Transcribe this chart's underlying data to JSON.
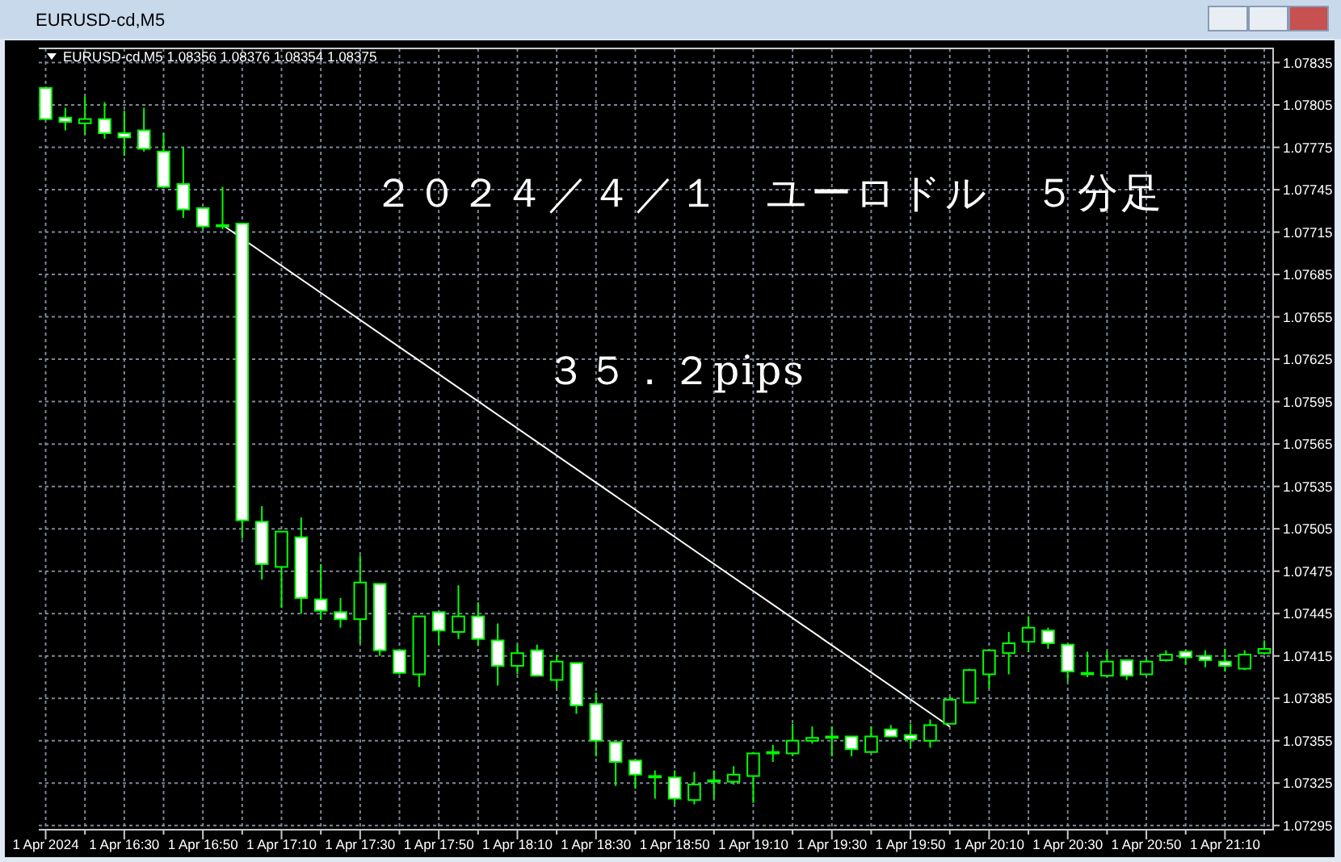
{
  "chart_data": {
    "type": "candlestick",
    "title": "２０２４／４／１　ユーロドル　５分足",
    "annotations": [
      "EURUSD-cd,M5",
      "EURUSD-cd,M5  1.08356 1.08376 1.08354 1.08375",
      "３５．２pips"
    ],
    "categories": [
      "1 Apr 2024",
      null,
      null,
      null,
      "1 Apr 16:30",
      null,
      null,
      null,
      "1 Apr 16:50",
      null,
      null,
      null,
      "1 Apr 17:10",
      null,
      null,
      null,
      "1 Apr 17:30",
      null,
      null,
      null,
      "1 Apr 17:50",
      null,
      null,
      null,
      "1 Apr 18:10",
      null,
      null,
      null,
      "1 Apr 18:30",
      null,
      null,
      null,
      "1 Apr 18:50",
      null,
      null,
      null,
      "1 Apr 19:10",
      null,
      null,
      null,
      "1 Apr 19:30",
      null,
      null,
      null,
      "1 Apr 19:50",
      null,
      null,
      null,
      "1 Apr 20:10",
      null,
      null,
      null,
      "1 Apr 20:30",
      null,
      null,
      null,
      "1 Apr 20:50",
      null,
      null,
      null,
      "1 Apr 21:10",
      null,
      null
    ],
    "ohlc": [
      [
        1.07817,
        1.07818,
        1.07794,
        1.07795
      ],
      [
        1.07796,
        1.07803,
        1.07787,
        1.07793
      ],
      [
        1.07792,
        1.07811,
        1.07784,
        1.07795
      ],
      [
        1.07795,
        1.07807,
        1.07781,
        1.07785
      ],
      [
        1.07785,
        1.07801,
        1.07769,
        1.07782
      ],
      [
        1.07787,
        1.07803,
        1.07772,
        1.07774
      ],
      [
        1.07772,
        1.07785,
        1.07746,
        1.07747
      ],
      [
        1.07749,
        1.07775,
        1.07725,
        1.07731
      ],
      [
        1.07732,
        1.07732,
        1.07717,
        1.07719
      ],
      [
        1.0772,
        1.07747,
        1.07717,
        1.07719
      ],
      [
        1.07721,
        1.07721,
        1.07498,
        1.07511
      ],
      [
        1.0751,
        1.07521,
        1.07469,
        1.0748
      ],
      [
        1.07478,
        1.07503,
        1.07449,
        1.07503
      ],
      [
        1.07499,
        1.07513,
        1.07445,
        1.07456
      ],
      [
        1.07455,
        1.0748,
        1.07441,
        1.07447
      ],
      [
        1.07446,
        1.07456,
        1.07435,
        1.07441
      ],
      [
        1.07441,
        1.07486,
        1.07424,
        1.07467
      ],
      [
        1.07466,
        1.07466,
        1.07415,
        1.07419
      ],
      [
        1.07419,
        1.07419,
        1.07402,
        1.07403
      ],
      [
        1.07402,
        1.07443,
        1.07393,
        1.07443
      ],
      [
        1.07446,
        1.07446,
        1.07423,
        1.07433
      ],
      [
        1.07432,
        1.07465,
        1.07427,
        1.07443
      ],
      [
        1.07443,
        1.07453,
        1.07422,
        1.07427
      ],
      [
        1.07426,
        1.07438,
        1.07394,
        1.07408
      ],
      [
        1.07408,
        1.07423,
        1.07402,
        1.07417
      ],
      [
        1.07419,
        1.07423,
        1.07401,
        1.07401
      ],
      [
        1.07398,
        1.07416,
        1.07392,
        1.07411
      ],
      [
        1.0741,
        1.0741,
        1.07374,
        1.0738
      ],
      [
        1.07381,
        1.07389,
        1.07344,
        1.07355
      ],
      [
        1.07354,
        1.07354,
        1.07323,
        1.0734
      ],
      [
        1.07341,
        1.07341,
        1.07321,
        1.07331
      ],
      [
        1.0733,
        1.07334,
        1.07314,
        1.07329
      ],
      [
        1.07329,
        1.07334,
        1.0731,
        1.07314
      ],
      [
        1.07313,
        1.07333,
        1.0731,
        1.07324
      ],
      [
        1.07326,
        1.07334,
        1.07314,
        1.07327
      ],
      [
        1.07326,
        1.07337,
        1.07324,
        1.07331
      ],
      [
        1.0733,
        1.07347,
        1.07311,
        1.07346
      ],
      [
        1.07346,
        1.07352,
        1.0734,
        1.07347
      ],
      [
        1.07346,
        1.07367,
        1.07344,
        1.07355
      ],
      [
        1.07355,
        1.07365,
        1.07353,
        1.07357
      ],
      [
        1.07357,
        1.07365,
        1.07344,
        1.07358
      ],
      [
        1.07358,
        1.07358,
        1.07344,
        1.07349
      ],
      [
        1.07347,
        1.07365,
        1.07347,
        1.07358
      ],
      [
        1.07363,
        1.07366,
        1.07358,
        1.07358
      ],
      [
        1.07359,
        1.07367,
        1.0735,
        1.07356
      ],
      [
        1.07355,
        1.0737,
        1.0735,
        1.07366
      ],
      [
        1.07367,
        1.07386,
        1.07367,
        1.07384
      ],
      [
        1.07382,
        1.07406,
        1.07382,
        1.07405
      ],
      [
        1.07402,
        1.07419,
        1.07392,
        1.07419
      ],
      [
        1.07417,
        1.07432,
        1.07402,
        1.07424
      ],
      [
        1.07425,
        1.07443,
        1.07418,
        1.07435
      ],
      [
        1.07433,
        1.07435,
        1.0742,
        1.07424
      ],
      [
        1.07423,
        1.07423,
        1.07397,
        1.07404
      ],
      [
        1.07403,
        1.07418,
        1.074,
        1.07402
      ],
      [
        1.07401,
        1.07418,
        1.074,
        1.07411
      ],
      [
        1.07412,
        1.07412,
        1.07398,
        1.07401
      ],
      [
        1.07402,
        1.07413,
        1.07402,
        1.07411
      ],
      [
        1.07412,
        1.07419,
        1.07411,
        1.07416
      ],
      [
        1.07418,
        1.07419,
        1.07409,
        1.07414
      ],
      [
        1.07415,
        1.07419,
        1.07407,
        1.07412
      ],
      [
        1.07411,
        1.0742,
        1.07404,
        1.07408
      ],
      [
        1.07406,
        1.07419,
        1.07405,
        1.07416
      ],
      [
        1.07417,
        1.07426,
        1.07416,
        1.0742
      ]
    ],
    "color": "#00ff00",
    "series": [
      {
        "type": "line",
        "values": [
          null,
          null,
          null,
          null,
          null,
          null,
          null,
          null,
          null,
          1.0772,
          null,
          null,
          null,
          null,
          null,
          null,
          null,
          null,
          null,
          null,
          null,
          null,
          null,
          null,
          null,
          null,
          null,
          null,
          null,
          null,
          null,
          null,
          null,
          null,
          null,
          null,
          null,
          null,
          null,
          null,
          null,
          null,
          null,
          null,
          null,
          null,
          1.07365,
          null,
          null,
          null,
          null,
          null,
          null,
          null,
          null,
          null,
          null,
          null,
          null,
          null,
          null,
          null,
          null
        ],
        "color": "#ffffff"
      }
    ],
    "ylim": [
      1.07292,
      1.07845
    ],
    "yticks": [
      1.07295,
      1.07325,
      1.07355,
      1.07385,
      1.07415,
      1.07445,
      1.07475,
      1.07505,
      1.07535,
      1.07565,
      1.07595,
      1.07625,
      1.07655,
      1.07685,
      1.07715,
      1.07745,
      1.07775,
      1.07805,
      1.07835
    ],
    "grid": true
  }
}
